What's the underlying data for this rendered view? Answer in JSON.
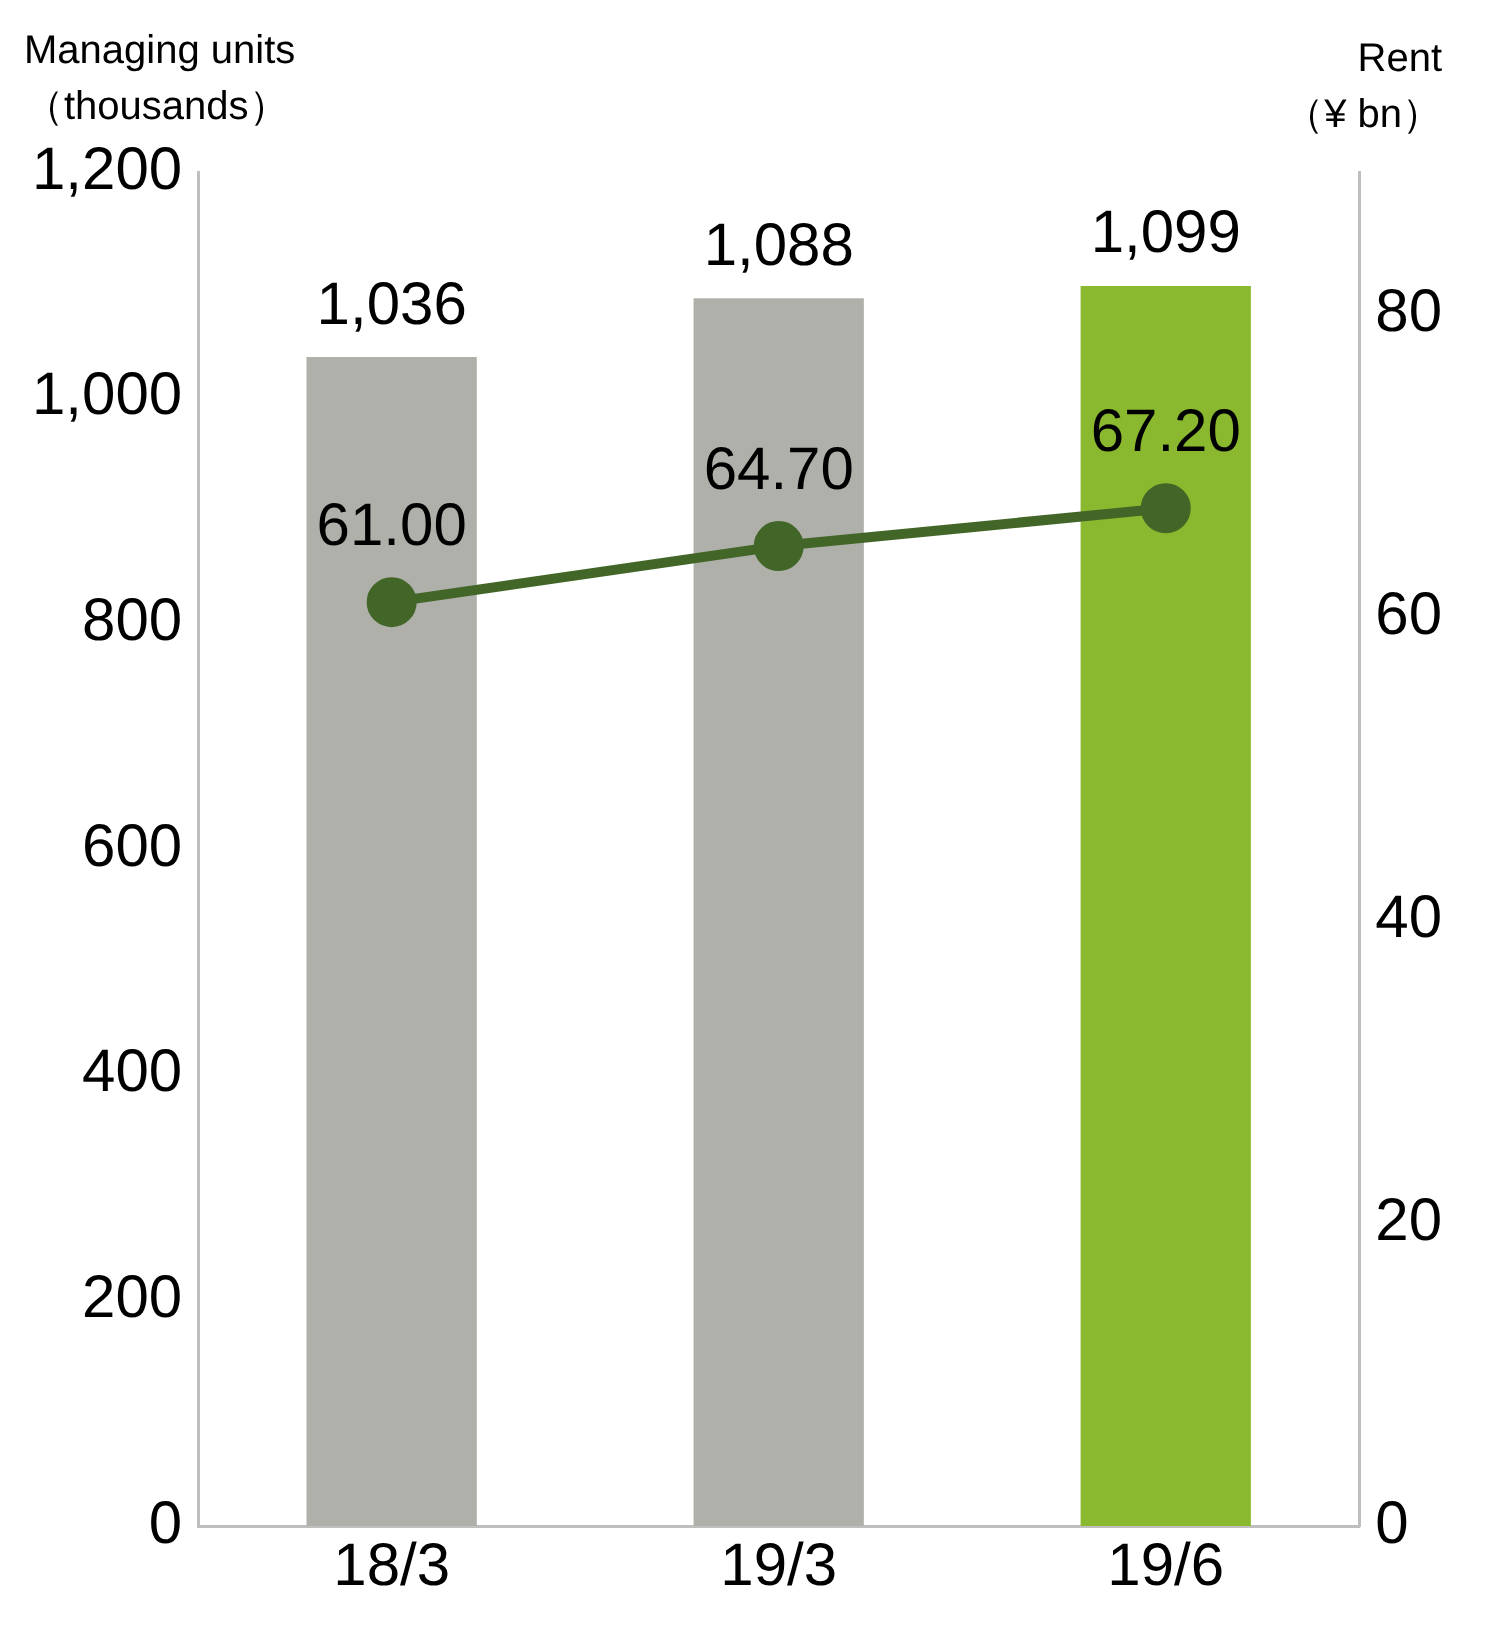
{
  "chart_data": {
    "type": "bar",
    "ylabel": "Managing units\n（thousands）",
    "y2label": "Rent\n（¥ bn）",
    "categories": [
      "18/3",
      "19/3",
      "19/6"
    ],
    "series": [
      {
        "colors": [
          "#b0b0ab",
          "#b0b0ab",
          "#8ab82e"
        ],
        "values": [
          1036,
          1088,
          1099
        ],
        "value_labels": [
          "1,036",
          "1,088",
          "1,099"
        ]
      },
      {
        "type": "line",
        "axis": "y2",
        "color": "#426628",
        "values": [
          61.0,
          64.7,
          67.2
        ],
        "value_labels": [
          "61.00",
          "64.70",
          "67.20"
        ]
      }
    ],
    "ylim": [
      0,
      1200
    ],
    "yticks": [
      0,
      200,
      400,
      600,
      800,
      {
        "value": 1000,
        "label": "1,000"
      },
      {
        "value": 1200,
        "label": "1,200"
      }
    ],
    "y2lim": [
      0,
      89.4
    ],
    "y2ticks": [
      0,
      20,
      40,
      60,
      80
    ],
    "grid": false,
    "legend": false,
    "marker": "circle",
    "line_style": "solid"
  }
}
